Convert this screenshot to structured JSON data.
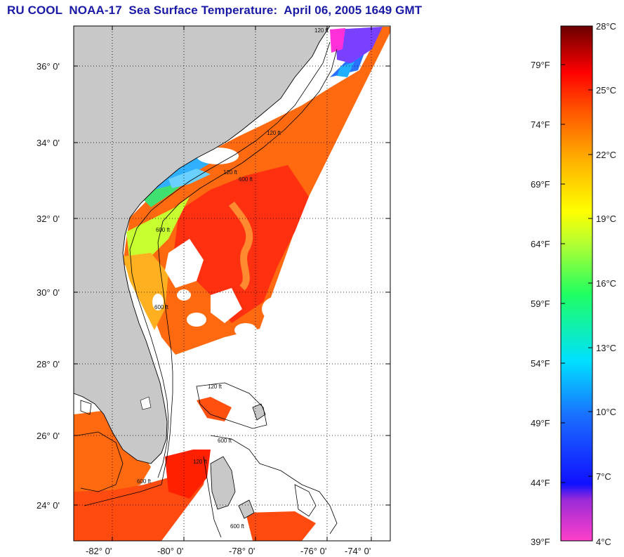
{
  "title": "RU COOL  NOAA-17  Sea Surface Temperature:  April 06, 2005 1649 GMT",
  "map": {
    "lat_ticks": [
      "36° 0'",
      "34° 0'",
      "32° 0'",
      "30° 0'",
      "28° 0'",
      "26° 0'",
      "24° 0'"
    ],
    "lon_ticks": [
      "-82° 0'",
      "-80° 0'",
      "-78° 0'",
      "-76° 0'",
      "-74° 0'"
    ],
    "isobath_labels": [
      "120 ft",
      "120 ft",
      "600 ft",
      "120 ft",
      "600 ft",
      "120 ft",
      "600 ft",
      "600 ft",
      "600 ft",
      "120 ft",
      "600 ft"
    ],
    "colors": {
      "land": "#c8c8c8",
      "no_data": "#ffffff",
      "coast": "#000000",
      "grid": "#000000"
    }
  },
  "colorbar": {
    "fahrenheit": [
      "79°F",
      "74°F",
      "69°F",
      "64°F",
      "59°F",
      "54°F",
      "49°F",
      "44°F",
      "39°F"
    ],
    "celsius": [
      "28°C",
      "25°C",
      "22°C",
      "19°C",
      "16°C",
      "13°C",
      "10°C",
      "7°C",
      "4°C"
    ]
  }
}
